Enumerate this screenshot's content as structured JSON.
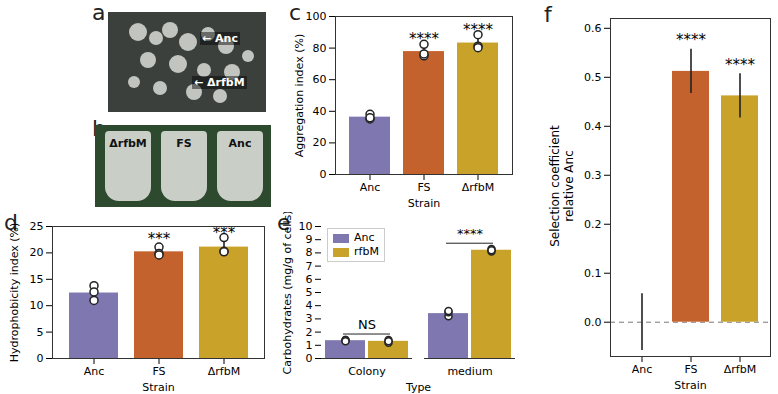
{
  "images": [
    {
      "panel": "a",
      "labels": [
        "Anc",
        "ΔrfbM"
      ]
    },
    {
      "panel": "b",
      "labels": [
        "ΔrfbM",
        "FS",
        "Anc"
      ]
    }
  ],
  "chart_data": [
    {
      "panel": "c",
      "type": "bar",
      "xlabel": "Strain",
      "ylabel": "Aggregation index (%)",
      "categories": [
        "Anc",
        "FS",
        "ΔrfbM"
      ],
      "values": [
        36.3,
        77.8,
        83.2
      ],
      "errors": [
        1.2,
        2.2,
        2.3
      ],
      "points": [
        [
          35.2,
          38.1,
          35.9
        ],
        [
          82.4,
          75.1,
          76.3
        ],
        [
          88.5,
          81.2,
          80.3
        ]
      ],
      "significance": [
        null,
        "****",
        "****"
      ],
      "colors": [
        "#7f78b0",
        "#c4622d",
        "#c9a229"
      ],
      "ylim": [
        0,
        100
      ],
      "yticks": [
        0,
        20,
        40,
        60,
        80,
        100
      ]
    },
    {
      "panel": "d",
      "type": "bar",
      "xlabel": "Strain",
      "ylabel": "Hydrophobicity index (%)",
      "categories": [
        "Anc",
        "FS",
        "ΔrfbM"
      ],
      "values": [
        12.4,
        20.2,
        21.1
      ],
      "errors": [
        0.8,
        0.6,
        0.9
      ],
      "points": [
        [
          13.8,
          12.6,
          11.0
        ],
        [
          21.1,
          19.9,
          19.6
        ],
        [
          22.9,
          20.3,
          20.2
        ]
      ],
      "significance": [
        null,
        "***",
        "***"
      ],
      "colors": [
        "#7f78b0",
        "#c4622d",
        "#c9a229"
      ],
      "ylim": [
        0,
        25
      ],
      "yticks": [
        0,
        5,
        10,
        15,
        20,
        25
      ]
    },
    {
      "panel": "e",
      "type": "grouped_bar",
      "xlabel": "Type",
      "ylabel": "Carbohydrates (mg/g of cells)",
      "categories": [
        "Colony",
        "medium"
      ],
      "series": [
        {
          "name": "Anc",
          "color": "#7f78b0",
          "values": [
            1.35,
            3.4
          ],
          "errors": [
            0.05,
            0.12
          ],
          "points": [
            [
              1.4,
              1.4,
              1.3
            ],
            [
              3.2,
              3.5,
              3.6
            ]
          ]
        },
        {
          "name": "rfbM",
          "color": "#c9a229",
          "values": [
            1.3,
            8.2
          ],
          "errors": [
            0.07,
            0.08
          ],
          "points": [
            [
              1.2,
              1.4,
              1.3
            ],
            [
              8.1,
              8.3,
              8.2
            ]
          ]
        }
      ],
      "significance": [
        "NS",
        "****"
      ],
      "legend": "top-left",
      "ylim": [
        0,
        10
      ],
      "yticks": [
        0,
        1,
        2,
        3,
        4,
        5,
        6,
        7,
        8,
        9,
        10
      ]
    },
    {
      "panel": "f",
      "type": "bar",
      "xlabel": "Strain",
      "ylabel": "Selection coefficient\nrelative Anc",
      "categories": [
        "Anc",
        "FS",
        "ΔrfbM"
      ],
      "values": [
        0,
        0.512,
        0.462
      ],
      "errors": [
        0.058,
        0.045,
        0.045
      ],
      "significance": [
        null,
        "****",
        "****"
      ],
      "colors": [
        "#7f78b0",
        "#c4622d",
        "#c9a229"
      ],
      "hline": 0,
      "line_style": "dashed",
      "ylim": [
        -0.07,
        0.62
      ],
      "yticks": [
        {
          "value": 0,
          "label": "0.0"
        },
        {
          "value": 0.1,
          "label": "0.1"
        },
        {
          "value": 0.2,
          "label": "0.2"
        },
        {
          "value": 0.3,
          "label": "0.3"
        },
        {
          "value": 0.4,
          "label": "0.4"
        },
        {
          "value": 0.5,
          "label": "0.5"
        },
        {
          "value": 0.6,
          "label": "0.6"
        }
      ]
    }
  ]
}
